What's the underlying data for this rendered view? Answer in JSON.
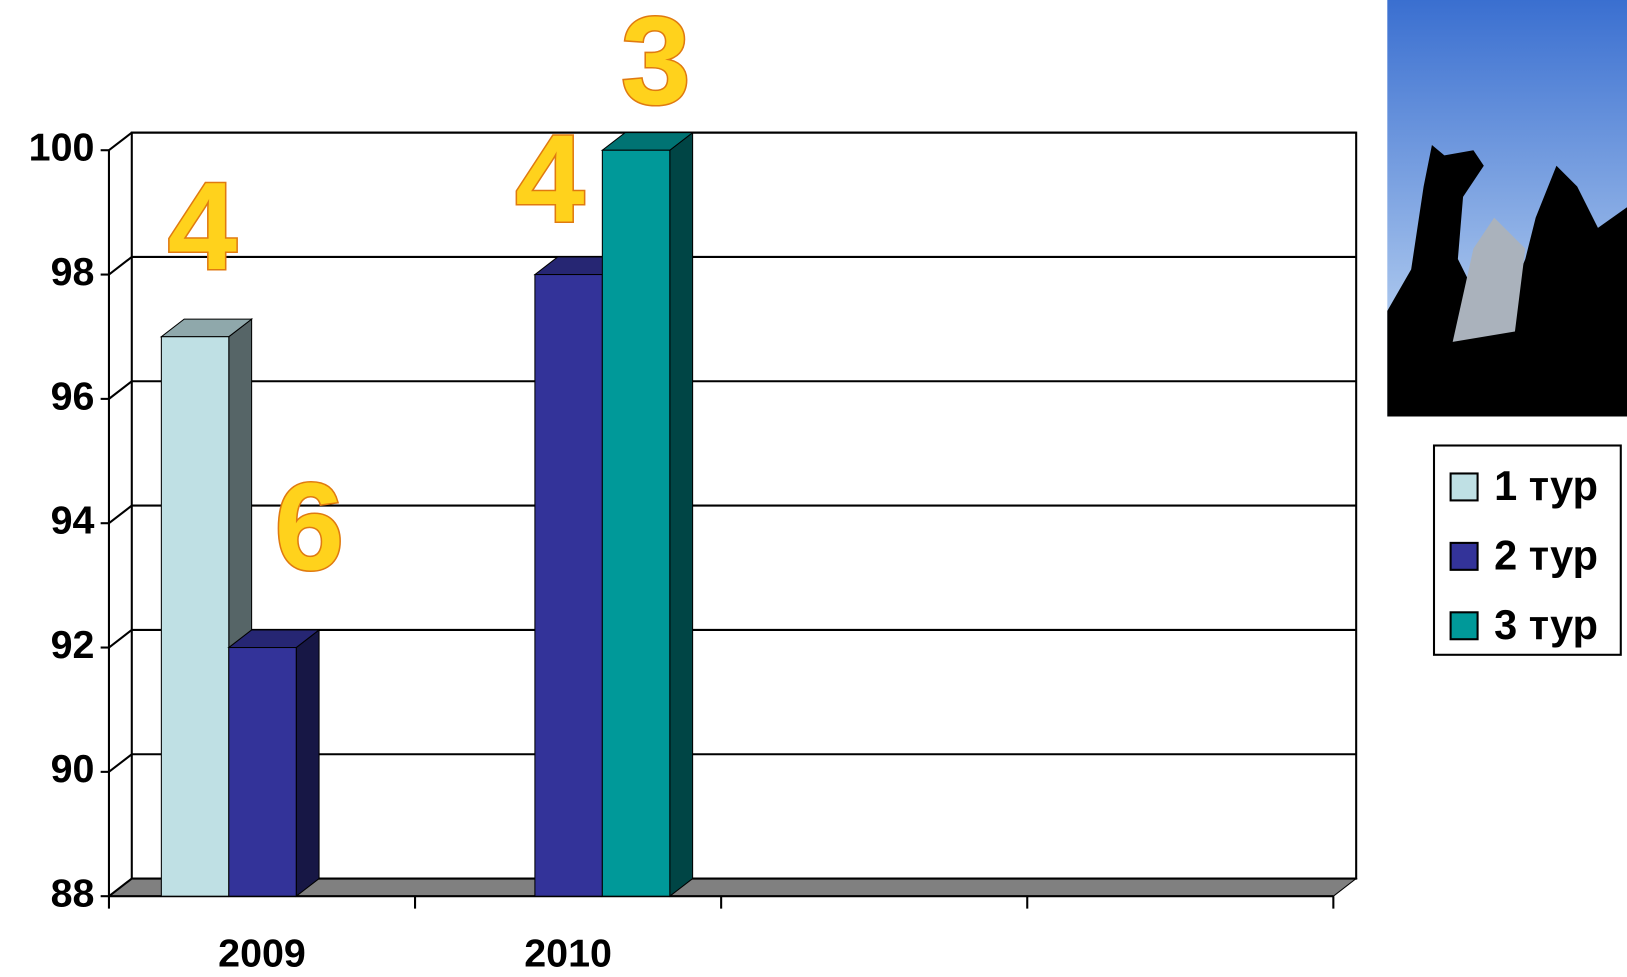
{
  "chart_data": {
    "type": "bar3d",
    "categories": [
      "2009",
      "2010",
      null,
      null
    ],
    "series": [
      {
        "name": "1 тур",
        "color": "#bfe0e4",
        "values": [
          97,
          null,
          null,
          null
        ]
      },
      {
        "name": "2 тур",
        "color": "#333399",
        "values": [
          92,
          98,
          null,
          null
        ]
      },
      {
        "name": "3 тур",
        "color": "#009999",
        "values": [
          null,
          100,
          null,
          null
        ]
      }
    ],
    "ylim": [
      88,
      100
    ],
    "yticks": [
      88,
      90,
      92,
      94,
      96,
      98,
      100
    ],
    "grid": true,
    "legend": "right",
    "annotations": [
      "4",
      "6",
      "4",
      "3"
    ]
  }
}
